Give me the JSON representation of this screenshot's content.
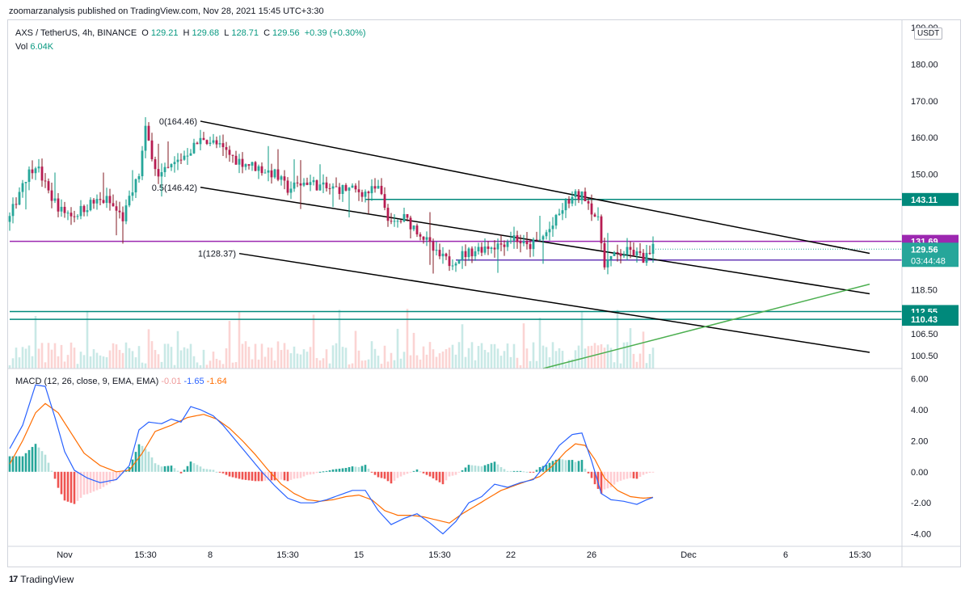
{
  "header": {
    "publisher": "zoomarzanalysis published on TradingView.com, Nov 28, 2021 15:45 UTC+3:30"
  },
  "legend": {
    "symbol": "AXS / TetherUS, 4h, BINANCE",
    "o_label": "O",
    "o": "129.21",
    "h_label": "H",
    "h": "129.68",
    "l_label": "L",
    "l": "128.71",
    "c_label": "C",
    "c": "129.56",
    "change": "+0.39 (+0.30%)",
    "vol_label": "Vol",
    "vol": "6.04K"
  },
  "macd_legend": {
    "title": "MACD (12, 26, close, 9, EMA, EMA)",
    "hist": "-0.01",
    "macd": "-1.65",
    "signal": "-1.64"
  },
  "currency": "USDT",
  "footer": {
    "brand": "TradingView"
  },
  "colors": {
    "up": "#26a69a",
    "down": "#ef5350",
    "up_wick": "#089981",
    "down_wick": "#801922",
    "channel": "#000000",
    "teal_level": "#00897b",
    "purple_level": "#9c27b0",
    "violet_level": "#673ab7",
    "trendline": "#4caf50",
    "macd_line": "#2962ff",
    "signal_line": "#ff6d00"
  },
  "chart_data": [
    {
      "type": "candlestick",
      "title": "AXS / TetherUS, 4h, BINANCE",
      "ylim": [
        97,
        192
      ],
      "y_ticks": [
        190.0,
        180.0,
        170.0,
        160.0,
        150.0,
        118.5,
        106.5,
        100.5
      ],
      "y_tick_labels": [
        "190.00",
        "180.00",
        "170.00",
        "160.00",
        "150.00",
        "118.50",
        "106.50",
        "100.50"
      ],
      "x_tick_labels": [
        "Nov",
        "15:30",
        "8",
        "15:30",
        "15",
        "15:30",
        "22",
        "26",
        "Dec",
        "6",
        "15:30"
      ],
      "x_tick_bar_index": [
        17,
        42,
        62,
        86,
        108,
        133,
        155,
        180,
        210,
        240,
        263
      ],
      "bar_count": 200,
      "close_anchors": [
        [
          0,
          138
        ],
        [
          4,
          148
        ],
        [
          8,
          153
        ],
        [
          12,
          145
        ],
        [
          16,
          140
        ],
        [
          20,
          139
        ],
        [
          25,
          142
        ],
        [
          30,
          143
        ],
        [
          35,
          138
        ],
        [
          40,
          150
        ],
        [
          42,
          162
        ],
        [
          46,
          149
        ],
        [
          50,
          152
        ],
        [
          55,
          156
        ],
        [
          60,
          160
        ],
        [
          64,
          158
        ],
        [
          70,
          154
        ],
        [
          76,
          152
        ],
        [
          82,
          150
        ],
        [
          86,
          146
        ],
        [
          92,
          148
        ],
        [
          98,
          146
        ],
        [
          104,
          146
        ],
        [
          110,
          145
        ],
        [
          114,
          146
        ],
        [
          118,
          136
        ],
        [
          122,
          138
        ],
        [
          127,
          134
        ],
        [
          132,
          128
        ],
        [
          136,
          126
        ],
        [
          140,
          128
        ],
        [
          146,
          130
        ],
        [
          152,
          131
        ],
        [
          156,
          133
        ],
        [
          160,
          130
        ],
        [
          164,
          132
        ],
        [
          168,
          136
        ],
        [
          172,
          142
        ],
        [
          175,
          144
        ],
        [
          178,
          144
        ],
        [
          182,
          137
        ],
        [
          184,
          126
        ],
        [
          188,
          128
        ],
        [
          192,
          129
        ],
        [
          196,
          127
        ],
        [
          198,
          128
        ],
        [
          199,
          129.56
        ]
      ],
      "volume_max_label": "6.04K",
      "last_price": 129.56,
      "countdown": "03:44:48",
      "price_labels": [
        {
          "value": 143.11,
          "label": "143.11",
          "color": "#00897b"
        },
        {
          "value": 131.69,
          "label": "131.69",
          "color": "#9c27b0"
        },
        {
          "value": 126.6,
          "label": "126.60",
          "color": "#673ab7"
        },
        {
          "value": 112.55,
          "label": "112.55",
          "color": "#00897b"
        },
        {
          "value": 110.43,
          "label": "110.43",
          "color": "#00897b"
        }
      ],
      "fib_labels": [
        "0(164.46)",
        "0.5(146.42)",
        "1(128.37)"
      ],
      "fib_values": [
        164.46,
        146.42,
        128.37
      ],
      "channel_lines": [
        {
          "from": [
            59,
            164.46
          ],
          "to": [
            266,
            128.4
          ]
        },
        {
          "from": [
            59,
            146.42
          ],
          "to": [
            266,
            117.4
          ]
        },
        {
          "from": [
            71,
            128.37
          ],
          "to": [
            266,
            101.4
          ]
        }
      ],
      "horizontal_levels": [
        {
          "value": 143.11,
          "from_bar": 110
        },
        {
          "value": 131.69,
          "from_bar": 0
        },
        {
          "value": 126.6,
          "from_bar": 138
        },
        {
          "value": 112.55,
          "from_bar": 0
        },
        {
          "value": 110.43,
          "from_bar": 0
        }
      ],
      "trendline": {
        "from": [
          165,
          97
        ],
        "to": [
          266,
          120
        ]
      }
    },
    {
      "type": "line",
      "title": "MACD (12, 26, close, 9, EMA, EMA)",
      "ylim": [
        -4.8,
        6.6
      ],
      "y_ticks": [
        6.0,
        4.0,
        2.0,
        0.0,
        -2.0,
        -4.0
      ],
      "y_tick_labels": [
        "6.00",
        "4.00",
        "2.00",
        "0.00",
        "-2.00",
        "-4.00"
      ],
      "series": [
        {
          "name": "MACD",
          "anchors": [
            [
              0,
              1.5
            ],
            [
              4,
              3.0
            ],
            [
              8,
              5.6
            ],
            [
              11,
              5.5
            ],
            [
              14,
              3.5
            ],
            [
              17,
              1.3
            ],
            [
              20,
              0.1
            ],
            [
              24,
              -0.4
            ],
            [
              28,
              -0.7
            ],
            [
              33,
              -0.5
            ],
            [
              37,
              0.4
            ],
            [
              40,
              2.7
            ],
            [
              43,
              3.2
            ],
            [
              47,
              3.1
            ],
            [
              50,
              3.4
            ],
            [
              53,
              3.2
            ],
            [
              56,
              4.2
            ],
            [
              59,
              4.0
            ],
            [
              63,
              3.6
            ],
            [
              66,
              3.0
            ],
            [
              70,
              2.0
            ],
            [
              74,
              1.0
            ],
            [
              78,
              0.0
            ],
            [
              82,
              -0.9
            ],
            [
              86,
              -1.7
            ],
            [
              90,
              -2.0
            ],
            [
              94,
              -2.0
            ],
            [
              98,
              -1.8
            ],
            [
              102,
              -1.5
            ],
            [
              106,
              -1.2
            ],
            [
              110,
              -1.2
            ],
            [
              114,
              -2.5
            ],
            [
              118,
              -3.4
            ],
            [
              122,
              -3.0
            ],
            [
              126,
              -2.7
            ],
            [
              130,
              -3.3
            ],
            [
              134,
              -4.0
            ],
            [
              138,
              -3.2
            ],
            [
              142,
              -2.0
            ],
            [
              146,
              -1.6
            ],
            [
              150,
              -0.8
            ],
            [
              154,
              -1.0
            ],
            [
              158,
              -0.7
            ],
            [
              162,
              -0.5
            ],
            [
              166,
              0.5
            ],
            [
              170,
              1.7
            ],
            [
              174,
              2.4
            ],
            [
              177,
              2.5
            ],
            [
              180,
              0.7
            ],
            [
              183,
              -1.4
            ],
            [
              186,
              -1.8
            ],
            [
              190,
              -1.9
            ],
            [
              194,
              -2.1
            ],
            [
              197,
              -1.8
            ],
            [
              199,
              -1.65
            ]
          ]
        },
        {
          "name": "Signal",
          "anchors": [
            [
              0,
              0.5
            ],
            [
              4,
              2.0
            ],
            [
              8,
              3.8
            ],
            [
              11,
              4.4
            ],
            [
              15,
              3.8
            ],
            [
              19,
              2.5
            ],
            [
              23,
              1.2
            ],
            [
              28,
              0.4
            ],
            [
              33,
              0.0
            ],
            [
              37,
              0.1
            ],
            [
              41,
              1.2
            ],
            [
              45,
              2.6
            ],
            [
              50,
              3.0
            ],
            [
              55,
              3.5
            ],
            [
              60,
              3.7
            ],
            [
              64,
              3.4
            ],
            [
              68,
              2.8
            ],
            [
              72,
              2.0
            ],
            [
              76,
              1.1
            ],
            [
              80,
              0.1
            ],
            [
              84,
              -0.8
            ],
            [
              88,
              -1.4
            ],
            [
              92,
              -1.8
            ],
            [
              96,
              -1.9
            ],
            [
              100,
              -1.8
            ],
            [
              104,
              -1.6
            ],
            [
              108,
              -1.5
            ],
            [
              112,
              -1.8
            ],
            [
              116,
              -2.5
            ],
            [
              120,
              -2.8
            ],
            [
              124,
              -2.8
            ],
            [
              128,
              -2.9
            ],
            [
              132,
              -3.1
            ],
            [
              136,
              -3.3
            ],
            [
              140,
              -2.7
            ],
            [
              144,
              -2.2
            ],
            [
              148,
              -1.7
            ],
            [
              152,
              -1.2
            ],
            [
              156,
              -0.9
            ],
            [
              160,
              -0.6
            ],
            [
              164,
              -0.3
            ],
            [
              168,
              0.4
            ],
            [
              172,
              1.3
            ],
            [
              175,
              1.8
            ],
            [
              178,
              1.7
            ],
            [
              181,
              0.8
            ],
            [
              184,
              -0.4
            ],
            [
              188,
              -1.2
            ],
            [
              192,
              -1.6
            ],
            [
              196,
              -1.7
            ],
            [
              199,
              -1.64
            ]
          ]
        }
      ]
    }
  ]
}
